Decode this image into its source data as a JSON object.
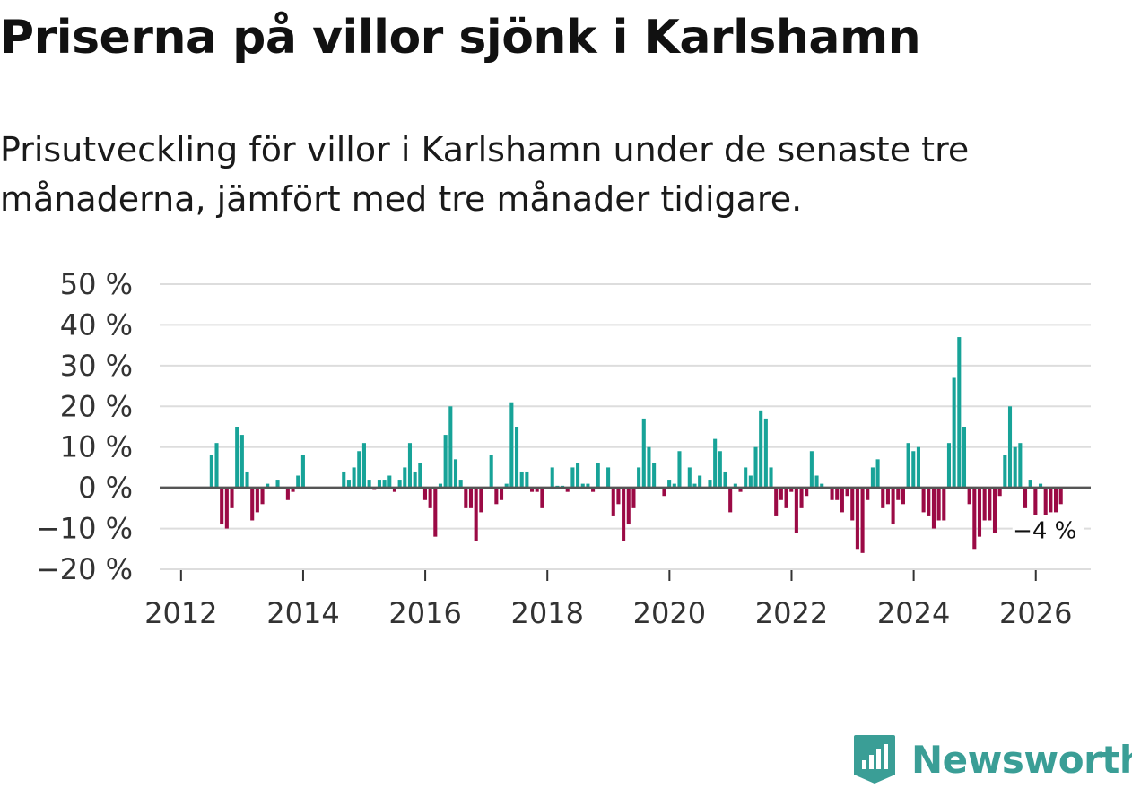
{
  "title": "Priserna på villor sjönk i Karlshamn",
  "subtitle": "Prisutveckling för villor i Karlshamn under de senaste tre månaderna, jämfört med tre månader tidigare.",
  "brand": {
    "name": "Newsworthy",
    "icon": "newsworthy-logo-icon"
  },
  "colors": {
    "positive": "#17a398",
    "negative": "#9b0a45",
    "grid": "#dddddd",
    "zero": "#555555"
  },
  "chart_data": {
    "type": "bar",
    "ylabel": "",
    "xlabel": "",
    "ylim": [
      -20,
      50
    ],
    "xlim": [
      2011.65,
      2026.9
    ],
    "y_ticks": [
      50,
      40,
      30,
      20,
      10,
      0,
      -10,
      -20
    ],
    "y_tick_labels": [
      "50 %",
      "40 %",
      "30 %",
      "20 %",
      "10 %",
      "0 %",
      "−10 %",
      "−20 %"
    ],
    "x_ticks": [
      2012,
      2014,
      2016,
      2018,
      2020,
      2022,
      2024,
      2026
    ],
    "x_tick_labels": [
      "2012",
      "2014",
      "2016",
      "2018",
      "2020",
      "2022",
      "2024",
      "2026"
    ],
    "annotation": {
      "label": "−4 %",
      "x": 2026.0,
      "y": -4
    },
    "series": [
      {
        "name": "Prisutveckling",
        "start": 2012.0,
        "step": 0.0833,
        "values": [
          0,
          0,
          0,
          0,
          0,
          0,
          8,
          11,
          -9,
          -10,
          -5,
          15,
          13,
          4,
          -8,
          -6,
          -4,
          1,
          0,
          2,
          0,
          -3,
          -1,
          3,
          8,
          0,
          0,
          0,
          0,
          0,
          0,
          0,
          4,
          2,
          5,
          9,
          11,
          2,
          -0.5,
          2,
          2,
          3,
          -1,
          2,
          5,
          11,
          4,
          6,
          -3,
          -5,
          -12,
          1,
          13,
          20,
          7,
          2,
          -5,
          -5,
          -13,
          -6,
          0,
          8,
          -4,
          -3,
          1,
          21,
          15,
          4,
          4,
          -1,
          -1,
          -5,
          0,
          5,
          0.5,
          0.5,
          -1,
          5,
          6,
          1,
          1,
          -1,
          6,
          0,
          5,
          -7,
          -4,
          -13,
          -9,
          -5,
          5,
          17,
          10,
          6,
          0,
          -2,
          2,
          1,
          9,
          0,
          5,
          1,
          3,
          0,
          2,
          12,
          9,
          4,
          -6,
          1,
          -1,
          5,
          3,
          10,
          19,
          17,
          5,
          -7,
          -3,
          -5,
          -1,
          -11,
          -5,
          -2,
          9,
          3,
          1,
          0,
          -3,
          -3,
          -6,
          -2,
          -8,
          -15,
          -16,
          -3,
          5,
          7,
          -5,
          -4,
          -9,
          -3,
          -4,
          11,
          9,
          10,
          -6,
          -7,
          -10,
          -8,
          -8,
          11,
          27,
          37,
          15,
          -4,
          -15,
          -12,
          -8,
          -8,
          -11,
          -2,
          8,
          20,
          10,
          11,
          -5,
          2,
          -8,
          1,
          -8,
          -6,
          -6,
          -4
        ]
      }
    ]
  }
}
